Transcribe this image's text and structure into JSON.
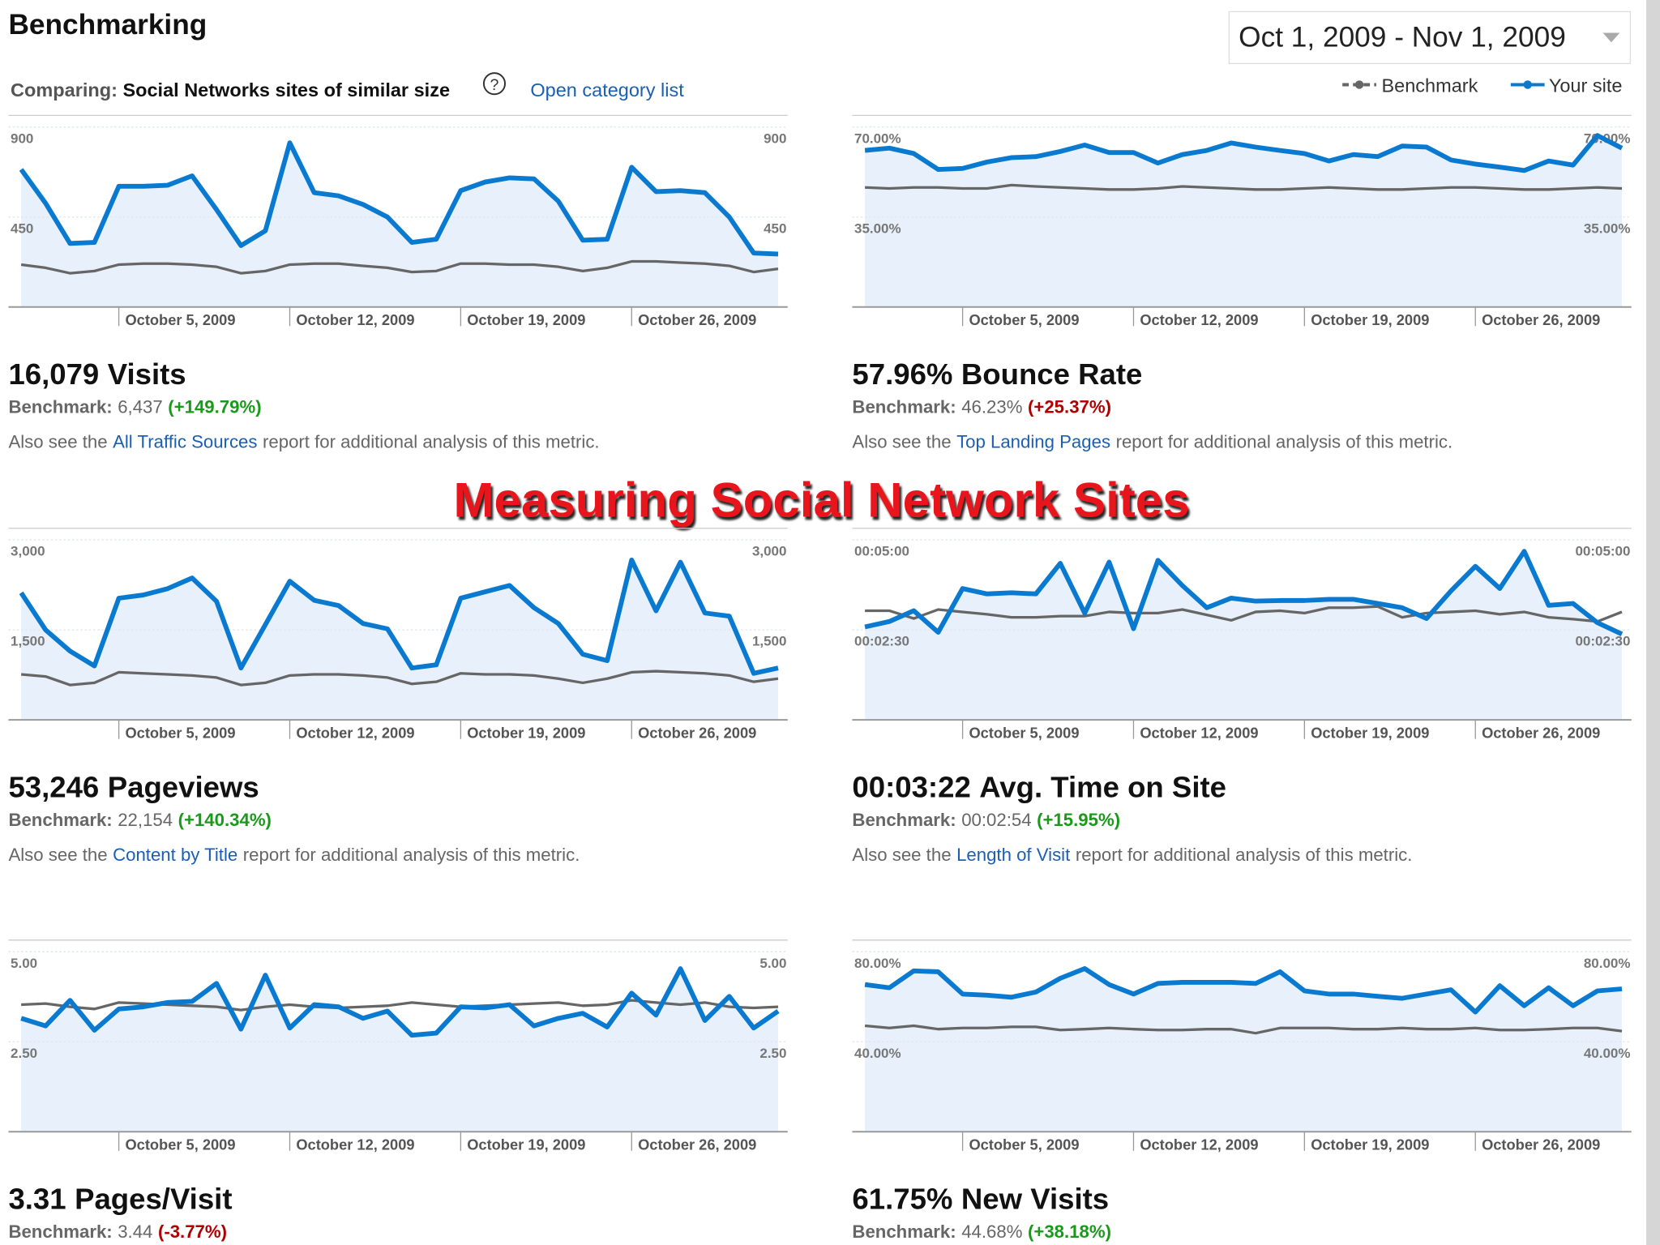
{
  "header": {
    "title": "Benchmarking",
    "comparing_label": "Comparing:",
    "comparing_value": "Social Networks sites of similar size",
    "help": "?",
    "category_link": "Open category list",
    "date_range": "Oct 1, 2009 - Nov 1, 2009"
  },
  "overlay_title": "Measuring Social Network Sites",
  "chart_data": [
    {
      "type": "line",
      "grid": true,
      "categories": [
        null,
        null,
        null,
        null,
        "October 5, 2009",
        null,
        null,
        null,
        null,
        null,
        null,
        "October 12, 2009",
        null,
        null,
        null,
        null,
        null,
        null,
        "October 19, 2009",
        null,
        null,
        null,
        null,
        null,
        null,
        "October 26, 2009",
        null,
        null,
        null,
        null,
        null,
        null
      ],
      "ylim": [
        0,
        900
      ],
      "yticks": [
        450,
        900
      ],
      "series": [
        {
          "name": "Benchmark",
          "color": "#666666",
          "values": [
            212,
            196,
            169,
            180,
            212,
            217,
            217,
            212,
            201,
            169,
            180,
            212,
            217,
            217,
            206,
            196,
            175,
            180,
            217,
            217,
            212,
            212,
            201,
            180,
            196,
            228,
            228,
            222,
            217,
            206,
            175,
            191
          ]
        },
        {
          "name": "Your site",
          "color": "#0a7ad1",
          "area_color": "#e8f1fb",
          "values": [
            688,
            519,
            318,
            323,
            604,
            604,
            609,
            656,
            487,
            307,
            381,
            821,
            572,
            556,
            513,
            450,
            323,
            339,
            582,
            625,
            646,
            641,
            529,
            334,
            339,
            699,
            577,
            582,
            572,
            450,
            270,
            265
          ]
        }
      ],
      "metric": {
        "value": "16,079",
        "name": "Visits",
        "benchmark_label": "Benchmark:",
        "benchmark": "6,437",
        "change": "(+149.79%)",
        "change_color": "#1a9a1a",
        "note_prefix": "Also see the",
        "link": "All Traffic Sources",
        "note_suffix": "report for additional analysis of this metric."
      }
    },
    {
      "type": "line",
      "grid": true,
      "categories": [
        null,
        null,
        null,
        null,
        "October 5, 2009",
        null,
        null,
        null,
        null,
        null,
        null,
        "October 12, 2009",
        null,
        null,
        null,
        null,
        null,
        null,
        "October 19, 2009",
        null,
        null,
        null,
        null,
        null,
        null,
        "October 26, 2009",
        null,
        null,
        null,
        null,
        null,
        null
      ],
      "ylim": [
        0,
        70
      ],
      "yticks": [
        {
          "value": 35,
          "label": "35.00%"
        },
        {
          "value": 70,
          "label": "70.00%"
        }
      ],
      "series": [
        {
          "color": "#666666",
          "values": [
            46.5,
            46.1,
            46.5,
            46.5,
            46.1,
            46.1,
            47.4,
            46.9,
            46.5,
            46.1,
            45.7,
            45.7,
            46.1,
            46.9,
            46.5,
            46.1,
            45.7,
            45.7,
            46.1,
            46.5,
            46.1,
            45.7,
            45.7,
            46.1,
            46.5,
            46.5,
            46.1,
            45.7,
            45.7,
            46.1,
            46.5,
            46.1
          ]
        },
        {
          "color": "#0a7ad1",
          "area_color": "#e8f1fb",
          "values": [
            60.9,
            61.8,
            59.7,
            53.5,
            53.9,
            56.4,
            58.1,
            58.5,
            60.5,
            63.0,
            60.1,
            60.1,
            56.0,
            59.3,
            60.9,
            63.8,
            62.2,
            60.9,
            59.7,
            56.8,
            59.3,
            58.5,
            62.6,
            62.2,
            57.2,
            55.6,
            54.4,
            53.1,
            56.8,
            55.2,
            66.7,
            61.8
          ]
        }
      ],
      "metric": {
        "value": "57.96%",
        "name": "Bounce Rate",
        "benchmark_label": "Benchmark:",
        "benchmark": "46.23%",
        "change": "(+25.37%)",
        "change_color": "#b00000",
        "note_prefix": "Also see the",
        "link": "Top Landing Pages",
        "note_suffix": "report for additional analysis of this metric."
      }
    },
    {
      "type": "line",
      "grid": true,
      "categories": [
        null,
        null,
        null,
        null,
        "October 5, 2009",
        null,
        null,
        null,
        null,
        null,
        null,
        "October 12, 2009",
        null,
        null,
        null,
        null,
        null,
        null,
        "October 19, 2009",
        null,
        null,
        null,
        null,
        null,
        null,
        "October 26, 2009",
        null,
        null,
        null,
        null,
        null,
        null
      ],
      "ylim": [
        0,
        3000
      ],
      "yticks": [
        {
          "value": 1500,
          "label": "1,500"
        },
        {
          "value": 3000,
          "label": "3,000"
        }
      ],
      "series": [
        {
          "color": "#666666",
          "values": [
            759,
            724,
            582,
            618,
            794,
            776,
            759,
            741,
            706,
            582,
            618,
            741,
            759,
            759,
            741,
            706,
            600,
            635,
            776,
            759,
            759,
            741,
            688,
            618,
            688,
            794,
            812,
            794,
            776,
            741,
            635,
            688
          ]
        },
        {
          "color": "#0a7ad1",
          "area_color": "#e8f1fb",
          "values": [
            2118,
            1500,
            1147,
            900,
            2029,
            2082,
            2188,
            2365,
            1976,
            865,
            1588,
            2312,
            1994,
            1906,
            1606,
            1518,
            865,
            918,
            2029,
            2135,
            2241,
            1871,
            1606,
            1094,
            988,
            2665,
            1818,
            2629,
            1782,
            1729,
            776,
            865
          ]
        }
      ],
      "metric": {
        "value": "53,246",
        "name": "Pageviews",
        "benchmark_label": "Benchmark:",
        "benchmark": "22,154",
        "change": "(+140.34%)",
        "change_color": "#1a9a1a",
        "note_prefix": "Also see the",
        "link": "Content by Title",
        "note_suffix": "report for additional analysis of this metric."
      }
    },
    {
      "type": "line",
      "grid": true,
      "categories": [
        null,
        null,
        null,
        null,
        "October 5, 2009",
        null,
        null,
        null,
        null,
        null,
        null,
        "October 12, 2009",
        null,
        null,
        null,
        null,
        null,
        null,
        "October 19, 2009",
        null,
        null,
        null,
        null,
        null,
        null,
        "October 26, 2009",
        null,
        null,
        null,
        null,
        null,
        null
      ],
      "ylim": [
        0,
        300
      ],
      "yticks": [
        {
          "value": 150,
          "label": "00:02:30"
        },
        {
          "value": 300,
          "label": "00:05:00"
        }
      ],
      "series": [
        {
          "color": "#666666",
          "values": [
            182,
            182,
            169,
            184,
            180,
            176,
            171,
            171,
            173,
            173,
            180,
            178,
            178,
            184,
            175,
            166,
            180,
            182,
            178,
            187,
            187,
            189,
            171,
            178,
            180,
            182,
            176,
            180,
            171,
            168,
            164,
            180
          ]
        },
        {
          "color": "#0a7ad1",
          "area_color": "#e8f1fb",
          "values": [
            155,
            164,
            182,
            146,
            219,
            210,
            212,
            210,
            261,
            178,
            263,
            152,
            266,
            224,
            187,
            203,
            198,
            199,
            199,
            201,
            201,
            194,
            187,
            169,
            215,
            256,
            219,
            281,
            191,
            194,
            162,
            143
          ]
        }
      ],
      "metric": {
        "value": "00:03:22",
        "name": "Avg. Time on Site",
        "benchmark_label": "Benchmark:",
        "benchmark": "00:02:54",
        "change": "(+15.95%)",
        "change_color": "#1a9a1a",
        "note_prefix": "Also see the",
        "link": "Length of Visit",
        "note_suffix": "report for additional analysis of this metric."
      }
    },
    {
      "type": "line",
      "grid": true,
      "categories": [
        null,
        null,
        null,
        null,
        "October 5, 2009",
        null,
        null,
        null,
        null,
        null,
        null,
        "October 12, 2009",
        null,
        null,
        null,
        null,
        null,
        null,
        "October 19, 2009",
        null,
        null,
        null,
        null,
        null,
        null,
        "October 26, 2009",
        null,
        null,
        null,
        null,
        null,
        null
      ],
      "ylim": [
        0,
        5
      ],
      "yticks": [
        {
          "value": 2.5,
          "label": "2.50"
        },
        {
          "value": 5,
          "label": "5.00"
        }
      ],
      "series": [
        {
          "color": "#666666",
          "values": [
            3.53,
            3.56,
            3.47,
            3.41,
            3.59,
            3.56,
            3.53,
            3.5,
            3.47,
            3.38,
            3.47,
            3.53,
            3.47,
            3.44,
            3.47,
            3.5,
            3.59,
            3.53,
            3.47,
            3.5,
            3.53,
            3.56,
            3.59,
            3.5,
            3.53,
            3.65,
            3.59,
            3.53,
            3.59,
            3.47,
            3.44,
            3.47
          ]
        },
        {
          "color": "#0a7ad1",
          "area_color": "#e8f1fb",
          "values": [
            3.15,
            2.94,
            3.65,
            2.82,
            3.41,
            3.47,
            3.59,
            3.62,
            4.12,
            2.85,
            4.35,
            2.88,
            3.53,
            3.47,
            3.15,
            3.35,
            2.68,
            2.74,
            3.47,
            3.44,
            3.53,
            2.94,
            3.15,
            3.29,
            2.91,
            3.85,
            3.24,
            4.53,
            3.09,
            3.76,
            2.88,
            3.35
          ]
        }
      ],
      "metric": {
        "value": "3.31",
        "name": "Pages/Visit",
        "benchmark_label": "Benchmark:",
        "benchmark": "3.44",
        "change": "(-3.77%)",
        "change_color": "#b00000"
      }
    },
    {
      "type": "line",
      "grid": true,
      "categories": [
        null,
        null,
        null,
        null,
        "October 5, 2009",
        null,
        null,
        null,
        null,
        null,
        null,
        "October 12, 2009",
        null,
        null,
        null,
        null,
        null,
        null,
        "October 19, 2009",
        null,
        null,
        null,
        null,
        null,
        null,
        "October 26, 2009",
        null,
        null,
        null,
        null,
        null,
        null
      ],
      "ylim": [
        0,
        80
      ],
      "yticks": [
        {
          "value": 40,
          "label": "40.00%"
        },
        {
          "value": 80,
          "label": "80.00%"
        }
      ],
      "series": [
        {
          "color": "#666666",
          "values": [
            47.1,
            46.1,
            47.1,
            45.6,
            46.1,
            46.1,
            46.6,
            46.6,
            45.2,
            45.6,
            46.1,
            45.6,
            45.2,
            45.2,
            45.6,
            45.6,
            43.8,
            46.1,
            46.1,
            46.1,
            45.6,
            45.6,
            46.1,
            45.6,
            45.6,
            46.1,
            45.2,
            45.2,
            45.6,
            46.1,
            46.1,
            44.7
          ]
        },
        {
          "color": "#0a7ad1",
          "area_color": "#e8f1fb",
          "values": [
            65.4,
            64.0,
            71.5,
            71.1,
            61.2,
            60.7,
            59.8,
            62.1,
            68.2,
            72.5,
            65.4,
            61.2,
            65.9,
            66.4,
            66.4,
            66.4,
            65.9,
            71.1,
            62.6,
            61.2,
            61.2,
            60.2,
            59.3,
            61.2,
            63.1,
            53.2,
            64.9,
            56.0,
            64.0,
            56.0,
            62.6,
            63.5
          ]
        }
      ],
      "metric": {
        "value": "61.75%",
        "name": "New Visits",
        "benchmark_label": "Benchmark:",
        "benchmark": "44.68%",
        "change": "(+38.18%)",
        "change_color": "#1a9a1a"
      }
    }
  ]
}
